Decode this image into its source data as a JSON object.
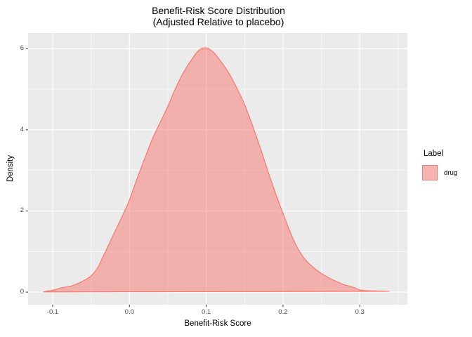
{
  "figure": {
    "title_line1": "Benefit-Risk Score Distribution",
    "title_line2": "(Adjusted Relative to placebo)"
  },
  "legend": {
    "title": "Label",
    "entries": [
      {
        "label": "drug",
        "stroke": "#F8766D",
        "key_fill": "#F5B4AF",
        "key_background": "#F2F2F2"
      }
    ]
  },
  "chart_data": {
    "type": "area",
    "subtype": "kernel-density",
    "title": "Benefit-Risk Score Distribution (Adjusted Relative to placebo)",
    "xlabel": "Benefit-Risk Score",
    "ylabel": "Density",
    "xlim": [
      -0.132,
      0.362
    ],
    "ylim": [
      -0.31,
      6.385
    ],
    "x_major_ticks": [
      -0.1,
      0.0,
      0.1,
      0.2,
      0.3
    ],
    "x_tick_labels": [
      "-0.1",
      "0.0",
      "0.1",
      "0.2",
      "0.3"
    ],
    "x_minor_ticks": [
      -0.05,
      0.05,
      0.15,
      0.25,
      0.35
    ],
    "y_major_ticks": [
      0,
      2,
      4,
      6
    ],
    "y_tick_labels": [
      "0",
      "2",
      "4",
      "6"
    ],
    "y_minor_ticks": [
      1,
      3,
      5
    ],
    "grid": true,
    "legend_position": "right",
    "colors": {
      "panel_background": "#EBEBEB",
      "gridline": "#FFFFFF",
      "tick_mark": "#333333",
      "tick_label": "#4D4D4D",
      "accent": "#F8766D"
    },
    "series": [
      {
        "name": "drug",
        "stroke": "#F8766D",
        "fill": "#F8766D",
        "fill_alpha": 0.5,
        "peak": {
          "x": 0.1,
          "density": 6.02
        },
        "points": [
          [
            -0.112,
            0.005
          ],
          [
            -0.105,
            0.03
          ],
          [
            -0.1,
            0.045
          ],
          [
            -0.095,
            0.07
          ],
          [
            -0.09,
            0.1
          ],
          [
            -0.085,
            0.12
          ],
          [
            -0.08,
            0.135
          ],
          [
            -0.075,
            0.155
          ],
          [
            -0.07,
            0.19
          ],
          [
            -0.065,
            0.23
          ],
          [
            -0.06,
            0.28
          ],
          [
            -0.055,
            0.33
          ],
          [
            -0.05,
            0.4
          ],
          [
            -0.045,
            0.5
          ],
          [
            -0.04,
            0.65
          ],
          [
            -0.035,
            0.85
          ],
          [
            -0.03,
            1.05
          ],
          [
            -0.025,
            1.25
          ],
          [
            -0.02,
            1.45
          ],
          [
            -0.015,
            1.65
          ],
          [
            -0.01,
            1.85
          ],
          [
            -0.005,
            2.05
          ],
          [
            0.0,
            2.27
          ],
          [
            0.01,
            2.8
          ],
          [
            0.02,
            3.3
          ],
          [
            0.03,
            3.78
          ],
          [
            0.04,
            4.18
          ],
          [
            0.05,
            4.58
          ],
          [
            0.06,
            5.02
          ],
          [
            0.07,
            5.4
          ],
          [
            0.08,
            5.7
          ],
          [
            0.09,
            5.95
          ],
          [
            0.1,
            6.02
          ],
          [
            0.11,
            5.9
          ],
          [
            0.12,
            5.66
          ],
          [
            0.13,
            5.38
          ],
          [
            0.14,
            5.02
          ],
          [
            0.15,
            4.62
          ],
          [
            0.16,
            4.12
          ],
          [
            0.17,
            3.58
          ],
          [
            0.18,
            3.0
          ],
          [
            0.19,
            2.45
          ],
          [
            0.2,
            1.94
          ],
          [
            0.21,
            1.45
          ],
          [
            0.22,
            1.05
          ],
          [
            0.23,
            0.78
          ],
          [
            0.24,
            0.6
          ],
          [
            0.25,
            0.46
          ],
          [
            0.26,
            0.35
          ],
          [
            0.27,
            0.26
          ],
          [
            0.28,
            0.18
          ],
          [
            0.29,
            0.13
          ],
          [
            0.3,
            0.055
          ],
          [
            0.31,
            0.035
          ],
          [
            0.32,
            0.03
          ],
          [
            0.33,
            0.025
          ],
          [
            0.338,
            0.02
          ]
        ]
      }
    ]
  }
}
